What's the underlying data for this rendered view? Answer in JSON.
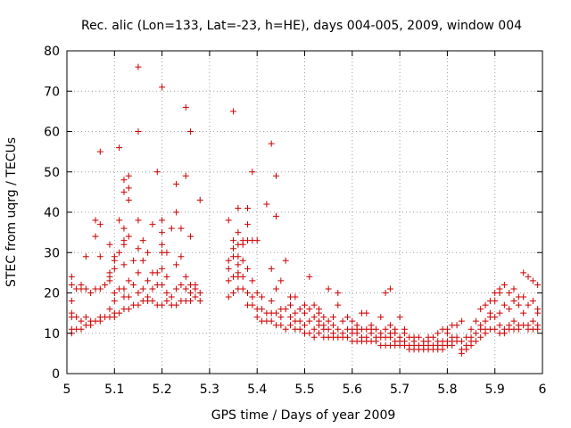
{
  "chart_data": {
    "type": "scatter",
    "title": "Rec. alic (Lon=133, Lat=-23, h=HE), days 004-005, 2009, window 004",
    "xlabel": "GPS time / Days of year 2009",
    "ylabel": "STEC from uqrg / TECUs",
    "xlim": [
      5,
      6
    ],
    "ylim": [
      0,
      80
    ],
    "x_ticks": [
      5,
      5.1,
      5.2,
      5.3,
      5.4,
      5.5,
      5.6,
      5.7,
      5.8,
      5.9,
      6
    ],
    "x_tick_labels": [
      "5",
      "5.1",
      "5.2",
      "5.3",
      "5.4",
      "5.5",
      "5.6",
      "5.7",
      "5.8",
      "5.9",
      "6"
    ],
    "y_ticks": [
      0,
      10,
      20,
      30,
      40,
      50,
      60,
      70,
      80
    ],
    "y_tick_labels": [
      "0",
      "10",
      "20",
      "30",
      "40",
      "50",
      "60",
      "70",
      "80"
    ],
    "grid": true,
    "marker": "+",
    "color": "#cc0000",
    "points": [
      [
        5.01,
        10
      ],
      [
        5.01,
        11
      ],
      [
        5.01,
        14
      ],
      [
        5.01,
        15
      ],
      [
        5.01,
        18
      ],
      [
        5.01,
        22
      ],
      [
        5.01,
        24
      ],
      [
        5.02,
        11
      ],
      [
        5.02,
        14
      ],
      [
        5.02,
        21
      ],
      [
        5.03,
        11
      ],
      [
        5.03,
        13
      ],
      [
        5.03,
        21
      ],
      [
        5.03,
        22
      ],
      [
        5.04,
        12
      ],
      [
        5.04,
        14
      ],
      [
        5.04,
        21
      ],
      [
        5.04,
        29
      ],
      [
        5.05,
        12
      ],
      [
        5.05,
        13
      ],
      [
        5.05,
        20
      ],
      [
        5.06,
        13
      ],
      [
        5.06,
        21
      ],
      [
        5.06,
        34
      ],
      [
        5.06,
        38
      ],
      [
        5.07,
        13
      ],
      [
        5.07,
        14
      ],
      [
        5.07,
        21
      ],
      [
        5.07,
        29
      ],
      [
        5.07,
        37
      ],
      [
        5.07,
        55
      ],
      [
        5.08,
        14
      ],
      [
        5.08,
        22
      ],
      [
        5.09,
        14
      ],
      [
        5.09,
        16
      ],
      [
        5.09,
        23
      ],
      [
        5.09,
        24
      ],
      [
        5.09,
        25
      ],
      [
        5.09,
        32
      ],
      [
        5.1,
        14
      ],
      [
        5.1,
        15
      ],
      [
        5.1,
        18
      ],
      [
        5.1,
        20
      ],
      [
        5.1,
        26
      ],
      [
        5.1,
        28
      ],
      [
        5.1,
        29
      ],
      [
        5.11,
        15
      ],
      [
        5.11,
        21
      ],
      [
        5.11,
        30
      ],
      [
        5.11,
        38
      ],
      [
        5.11,
        56
      ],
      [
        5.12,
        16
      ],
      [
        5.12,
        19
      ],
      [
        5.12,
        21
      ],
      [
        5.12,
        27
      ],
      [
        5.12,
        32
      ],
      [
        5.12,
        33
      ],
      [
        5.12,
        36
      ],
      [
        5.12,
        45
      ],
      [
        5.12,
        48
      ],
      [
        5.13,
        16
      ],
      [
        5.13,
        19
      ],
      [
        5.13,
        23
      ],
      [
        5.13,
        34
      ],
      [
        5.13,
        46
      ],
      [
        5.13,
        49
      ],
      [
        5.13,
        43
      ],
      [
        5.14,
        17
      ],
      [
        5.14,
        22
      ],
      [
        5.14,
        28
      ],
      [
        5.15,
        17
      ],
      [
        5.15,
        20
      ],
      [
        5.15,
        25
      ],
      [
        5.15,
        31
      ],
      [
        5.15,
        38
      ],
      [
        5.15,
        60
      ],
      [
        5.15,
        76
      ],
      [
        5.16,
        18
      ],
      [
        5.16,
        21
      ],
      [
        5.16,
        28
      ],
      [
        5.16,
        33
      ],
      [
        5.17,
        18
      ],
      [
        5.17,
        19
      ],
      [
        5.17,
        23
      ],
      [
        5.17,
        30
      ],
      [
        5.18,
        18
      ],
      [
        5.18,
        21
      ],
      [
        5.18,
        25
      ],
      [
        5.18,
        37
      ],
      [
        5.19,
        17
      ],
      [
        5.19,
        22
      ],
      [
        5.19,
        25
      ],
      [
        5.19,
        50
      ],
      [
        5.2,
        17
      ],
      [
        5.2,
        22
      ],
      [
        5.2,
        26
      ],
      [
        5.2,
        30
      ],
      [
        5.2,
        32
      ],
      [
        5.2,
        35
      ],
      [
        5.2,
        38
      ],
      [
        5.2,
        71
      ],
      [
        5.21,
        18
      ],
      [
        5.21,
        20
      ],
      [
        5.21,
        24
      ],
      [
        5.21,
        30
      ],
      [
        5.22,
        17
      ],
      [
        5.22,
        19
      ],
      [
        5.22,
        36
      ],
      [
        5.23,
        17
      ],
      [
        5.23,
        21
      ],
      [
        5.23,
        27
      ],
      [
        5.23,
        40
      ],
      [
        5.23,
        47
      ],
      [
        5.24,
        18
      ],
      [
        5.24,
        22
      ],
      [
        5.24,
        29
      ],
      [
        5.24,
        36
      ],
      [
        5.25,
        18
      ],
      [
        5.25,
        21
      ],
      [
        5.25,
        24
      ],
      [
        5.25,
        49
      ],
      [
        5.25,
        66
      ],
      [
        5.26,
        18
      ],
      [
        5.26,
        20
      ],
      [
        5.26,
        22
      ],
      [
        5.26,
        34
      ],
      [
        5.26,
        60
      ],
      [
        5.27,
        19
      ],
      [
        5.27,
        21
      ],
      [
        5.27,
        22
      ],
      [
        5.28,
        18
      ],
      [
        5.28,
        20
      ],
      [
        5.28,
        43
      ],
      [
        5.34,
        19
      ],
      [
        5.34,
        23
      ],
      [
        5.34,
        26
      ],
      [
        5.34,
        28
      ],
      [
        5.34,
        38
      ],
      [
        5.35,
        20
      ],
      [
        5.35,
        24
      ],
      [
        5.35,
        29
      ],
      [
        5.35,
        31
      ],
      [
        5.35,
        33
      ],
      [
        5.35,
        65
      ],
      [
        5.36,
        21
      ],
      [
        5.36,
        24
      ],
      [
        5.36,
        25
      ],
      [
        5.36,
        27
      ],
      [
        5.36,
        29
      ],
      [
        5.36,
        32
      ],
      [
        5.36,
        35
      ],
      [
        5.36,
        41
      ],
      [
        5.37,
        21
      ],
      [
        5.37,
        24
      ],
      [
        5.37,
        28
      ],
      [
        5.37,
        32
      ],
      [
        5.37,
        33
      ],
      [
        5.38,
        17
      ],
      [
        5.38,
        20
      ],
      [
        5.38,
        26
      ],
      [
        5.38,
        33
      ],
      [
        5.38,
        37
      ],
      [
        5.38,
        41
      ],
      [
        5.39,
        17
      ],
      [
        5.39,
        19
      ],
      [
        5.39,
        23
      ],
      [
        5.39,
        33
      ],
      [
        5.39,
        50
      ],
      [
        5.4,
        14
      ],
      [
        5.4,
        16
      ],
      [
        5.4,
        20
      ],
      [
        5.4,
        33
      ],
      [
        5.41,
        13
      ],
      [
        5.41,
        16
      ],
      [
        5.41,
        19
      ],
      [
        5.42,
        13
      ],
      [
        5.42,
        15
      ],
      [
        5.42,
        42
      ],
      [
        5.43,
        13
      ],
      [
        5.43,
        15
      ],
      [
        5.43,
        18
      ],
      [
        5.43,
        26
      ],
      [
        5.43,
        57
      ],
      [
        5.44,
        12
      ],
      [
        5.44,
        15
      ],
      [
        5.44,
        21
      ],
      [
        5.44,
        39
      ],
      [
        5.44,
        49
      ],
      [
        5.45,
        12
      ],
      [
        5.45,
        14
      ],
      [
        5.45,
        16
      ],
      [
        5.45,
        23
      ],
      [
        5.46,
        11
      ],
      [
        5.46,
        16
      ],
      [
        5.46,
        28
      ],
      [
        5.47,
        12
      ],
      [
        5.47,
        14
      ],
      [
        5.47,
        17
      ],
      [
        5.47,
        19
      ],
      [
        5.48,
        11
      ],
      [
        5.48,
        13
      ],
      [
        5.48,
        15
      ],
      [
        5.48,
        19
      ],
      [
        5.49,
        11
      ],
      [
        5.49,
        13
      ],
      [
        5.49,
        16
      ],
      [
        5.5,
        10
      ],
      [
        5.5,
        12
      ],
      [
        5.5,
        15
      ],
      [
        5.5,
        17
      ],
      [
        5.51,
        10
      ],
      [
        5.51,
        13
      ],
      [
        5.51,
        16
      ],
      [
        5.51,
        24
      ],
      [
        5.52,
        9
      ],
      [
        5.52,
        11
      ],
      [
        5.52,
        14
      ],
      [
        5.52,
        17
      ],
      [
        5.53,
        10
      ],
      [
        5.53,
        12
      ],
      [
        5.53,
        13
      ],
      [
        5.53,
        15
      ],
      [
        5.53,
        16
      ],
      [
        5.54,
        9
      ],
      [
        5.54,
        11
      ],
      [
        5.54,
        12
      ],
      [
        5.54,
        14
      ],
      [
        5.55,
        9
      ],
      [
        5.55,
        11
      ],
      [
        5.55,
        13
      ],
      [
        5.55,
        21
      ],
      [
        5.56,
        9
      ],
      [
        5.56,
        10
      ],
      [
        5.56,
        12
      ],
      [
        5.56,
        14
      ],
      [
        5.57,
        9
      ],
      [
        5.57,
        11
      ],
      [
        5.57,
        17
      ],
      [
        5.57,
        20
      ],
      [
        5.58,
        9
      ],
      [
        5.58,
        10
      ],
      [
        5.58,
        13
      ],
      [
        5.59,
        9
      ],
      [
        5.59,
        11
      ],
      [
        5.59,
        14
      ],
      [
        5.6,
        8
      ],
      [
        5.6,
        10
      ],
      [
        5.6,
        11
      ],
      [
        5.6,
        13
      ],
      [
        5.61,
        8
      ],
      [
        5.61,
        10
      ],
      [
        5.61,
        11
      ],
      [
        5.61,
        12
      ],
      [
        5.62,
        8
      ],
      [
        5.62,
        9
      ],
      [
        5.62,
        11
      ],
      [
        5.62,
        15
      ],
      [
        5.63,
        8
      ],
      [
        5.63,
        9
      ],
      [
        5.63,
        11
      ],
      [
        5.63,
        15
      ],
      [
        5.64,
        8
      ],
      [
        5.64,
        10
      ],
      [
        5.64,
        11
      ],
      [
        5.64,
        12
      ],
      [
        5.65,
        8
      ],
      [
        5.65,
        9
      ],
      [
        5.65,
        11
      ],
      [
        5.66,
        7
      ],
      [
        5.66,
        9
      ],
      [
        5.66,
        10
      ],
      [
        5.66,
        14
      ],
      [
        5.67,
        7
      ],
      [
        5.67,
        9
      ],
      [
        5.67,
        11
      ],
      [
        5.67,
        20
      ],
      [
        5.68,
        7
      ],
      [
        5.68,
        9
      ],
      [
        5.68,
        10
      ],
      [
        5.68,
        12
      ],
      [
        5.68,
        21
      ],
      [
        5.69,
        7
      ],
      [
        5.69,
        8
      ],
      [
        5.69,
        10
      ],
      [
        5.69,
        11
      ],
      [
        5.7,
        7
      ],
      [
        5.7,
        8
      ],
      [
        5.7,
        9
      ],
      [
        5.7,
        14
      ],
      [
        5.71,
        7
      ],
      [
        5.71,
        8
      ],
      [
        5.71,
        10
      ],
      [
        5.71,
        11
      ],
      [
        5.72,
        6
      ],
      [
        5.72,
        7
      ],
      [
        5.72,
        9
      ],
      [
        5.73,
        6
      ],
      [
        5.73,
        7
      ],
      [
        5.73,
        8
      ],
      [
        5.73,
        9
      ],
      [
        5.74,
        6
      ],
      [
        5.74,
        7
      ],
      [
        5.74,
        9
      ],
      [
        5.75,
        6
      ],
      [
        5.75,
        7
      ],
      [
        5.75,
        8
      ],
      [
        5.76,
        6
      ],
      [
        5.76,
        7
      ],
      [
        5.76,
        8
      ],
      [
        5.76,
        9
      ],
      [
        5.77,
        6
      ],
      [
        5.77,
        7
      ],
      [
        5.77,
        9
      ],
      [
        5.78,
        6
      ],
      [
        5.78,
        7
      ],
      [
        5.78,
        8
      ],
      [
        5.78,
        10
      ],
      [
        5.79,
        6
      ],
      [
        5.79,
        7
      ],
      [
        5.79,
        8
      ],
      [
        5.79,
        11
      ],
      [
        5.8,
        7
      ],
      [
        5.8,
        8
      ],
      [
        5.8,
        10
      ],
      [
        5.8,
        11
      ],
      [
        5.81,
        7
      ],
      [
        5.81,
        8
      ],
      [
        5.81,
        9
      ],
      [
        5.81,
        12
      ],
      [
        5.82,
        8
      ],
      [
        5.82,
        9
      ],
      [
        5.82,
        12
      ],
      [
        5.83,
        5
      ],
      [
        5.83,
        6
      ],
      [
        5.83,
        8
      ],
      [
        5.83,
        13
      ],
      [
        5.84,
        6
      ],
      [
        5.84,
        7
      ],
      [
        5.84,
        9
      ],
      [
        5.85,
        7
      ],
      [
        5.85,
        8
      ],
      [
        5.85,
        9
      ],
      [
        5.85,
        11
      ],
      [
        5.86,
        8
      ],
      [
        5.86,
        10
      ],
      [
        5.86,
        13
      ],
      [
        5.87,
        9
      ],
      [
        5.87,
        11
      ],
      [
        5.87,
        12
      ],
      [
        5.87,
        16
      ],
      [
        5.88,
        10
      ],
      [
        5.88,
        11
      ],
      [
        5.88,
        13
      ],
      [
        5.88,
        17
      ],
      [
        5.89,
        11
      ],
      [
        5.89,
        14
      ],
      [
        5.89,
        15
      ],
      [
        5.89,
        18
      ],
      [
        5.9,
        11
      ],
      [
        5.9,
        14
      ],
      [
        5.9,
        18
      ],
      [
        5.9,
        20
      ],
      [
        5.91,
        10
      ],
      [
        5.91,
        12
      ],
      [
        5.91,
        15
      ],
      [
        5.91,
        20
      ],
      [
        5.91,
        21
      ],
      [
        5.92,
        10
      ],
      [
        5.92,
        11
      ],
      [
        5.92,
        17
      ],
      [
        5.92,
        22
      ],
      [
        5.93,
        11
      ],
      [
        5.93,
        12
      ],
      [
        5.93,
        16
      ],
      [
        5.93,
        20
      ],
      [
        5.94,
        11
      ],
      [
        5.94,
        13
      ],
      [
        5.94,
        18
      ],
      [
        5.94,
        21
      ],
      [
        5.95,
        11
      ],
      [
        5.95,
        12
      ],
      [
        5.95,
        17
      ],
      [
        5.95,
        19
      ],
      [
        5.96,
        12
      ],
      [
        5.96,
        15
      ],
      [
        5.96,
        19
      ],
      [
        5.96,
        25
      ],
      [
        5.97,
        11
      ],
      [
        5.97,
        12
      ],
      [
        5.97,
        17
      ],
      [
        5.97,
        24
      ],
      [
        5.98,
        11
      ],
      [
        5.98,
        13
      ],
      [
        5.98,
        18
      ],
      [
        5.98,
        23
      ],
      [
        5.99,
        11
      ],
      [
        5.99,
        12
      ],
      [
        5.99,
        15
      ],
      [
        5.99,
        16
      ],
      [
        5.99,
        22
      ]
    ]
  }
}
